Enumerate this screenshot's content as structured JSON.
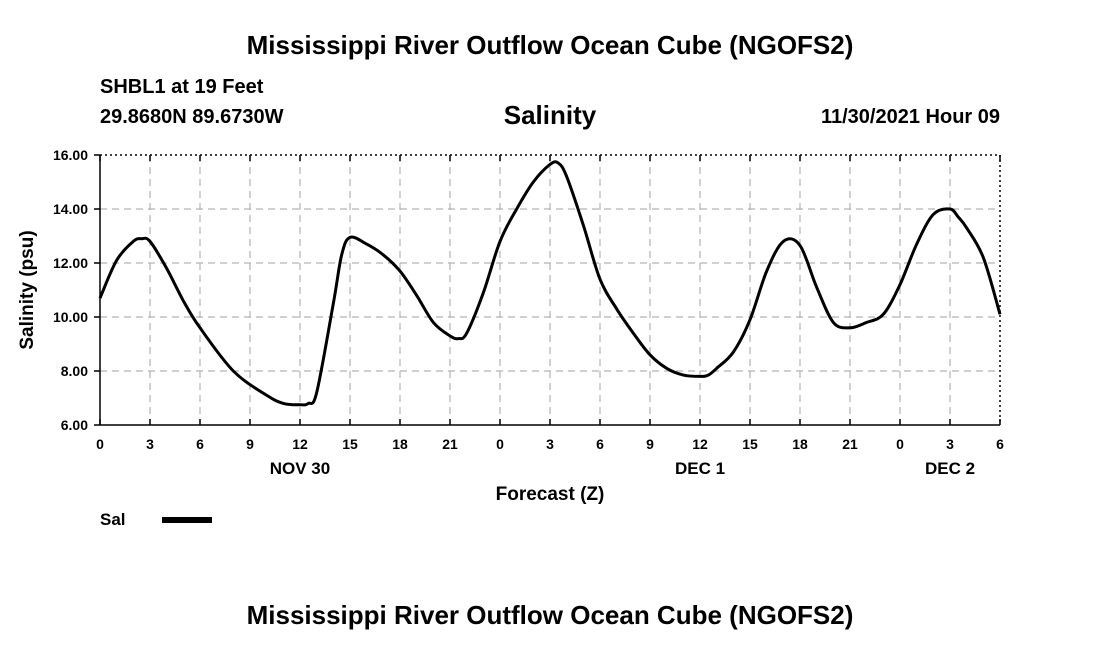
{
  "header": {
    "main_title": "Mississippi River Outflow Ocean Cube (NGOFS2)",
    "station": "SHBL1 at 19 Feet",
    "coords": "29.8680N  89.6730W",
    "chart_title": "Salinity",
    "datetime": "11/30/2021 Hour 09"
  },
  "footer": {
    "title": "Mississippi River Outflow Ocean Cube (NGOFS2)"
  },
  "legend": {
    "label": "Sal"
  },
  "chart_data": {
    "type": "line",
    "title": "Salinity",
    "xlabel": "Forecast (Z)",
    "ylabel": "Salinity (psu)",
    "x_unit": "hours from 11/30/2021 00Z",
    "xlim": [
      0,
      54
    ],
    "ylim": [
      6,
      16
    ],
    "grid": true,
    "legend_position": "bottom-left",
    "y_ticks": [
      6,
      8,
      10,
      12,
      14,
      16
    ],
    "y_tick_labels": [
      "6.00",
      "8.00",
      "10.00",
      "12.00",
      "14.00",
      "16.00"
    ],
    "x_ticks": [
      0,
      3,
      6,
      9,
      12,
      15,
      18,
      21,
      24,
      27,
      30,
      33,
      36,
      39,
      42,
      45,
      48,
      51,
      54
    ],
    "x_tick_labels": [
      "0",
      "3",
      "6",
      "9",
      "12",
      "15",
      "18",
      "21",
      "0",
      "3",
      "6",
      "9",
      "12",
      "15",
      "18",
      "21",
      "0",
      "3",
      "6"
    ],
    "day_labels": [
      {
        "x": 12,
        "label": "NOV 30"
      },
      {
        "x": 36,
        "label": "DEC 1"
      },
      {
        "x": 51,
        "label": "DEC 2"
      }
    ],
    "series": [
      {
        "name": "Sal",
        "color": "#000000",
        "x": [
          0,
          1,
          2,
          2.5,
          3,
          4,
          5,
          6,
          8,
          10,
          11,
          12,
          12.5,
          13,
          14,
          14.5,
          15,
          16,
          17,
          18,
          19,
          20,
          21,
          21.5,
          22,
          23,
          24,
          25,
          26,
          27,
          27.5,
          28,
          29,
          30,
          31,
          32,
          33,
          34,
          35,
          36,
          36.5,
          37,
          38,
          39,
          40,
          41,
          42,
          43,
          44,
          45,
          46,
          47,
          48,
          49,
          50,
          51,
          51.5,
          52,
          53,
          54
        ],
        "y": [
          10.7,
          12.1,
          12.8,
          12.9,
          12.8,
          11.8,
          10.6,
          9.6,
          8.0,
          7.1,
          6.8,
          6.75,
          6.8,
          7.2,
          10.5,
          12.3,
          12.95,
          12.7,
          12.3,
          11.7,
          10.8,
          9.8,
          9.3,
          9.2,
          9.4,
          10.9,
          12.8,
          14.0,
          15.0,
          15.65,
          15.7,
          15.2,
          13.4,
          11.4,
          10.3,
          9.4,
          8.6,
          8.1,
          7.85,
          7.8,
          7.85,
          8.1,
          8.7,
          9.9,
          11.7,
          12.8,
          12.65,
          11.1,
          9.8,
          9.6,
          9.8,
          10.1,
          11.2,
          12.7,
          13.8,
          14.0,
          13.7,
          13.3,
          12.2,
          10.1
        ]
      }
    ]
  }
}
